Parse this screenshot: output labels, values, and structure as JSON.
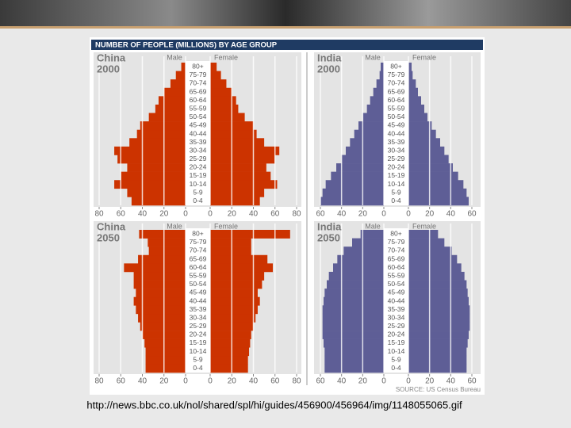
{
  "title": "NUMBER OF PEOPLE (MILLIONS) BY AGE GROUP",
  "source": "SOURCE: US Census Bureau",
  "caption": "http://news.bbc.co.uk/nol/shared/spl/hi/guides/456900/456964/img/1148055065.gif",
  "chart_data": [
    {
      "type": "pyramid",
      "title": "China",
      "subtitle": "2000",
      "categories": [
        "0-4",
        "5-9",
        "10-14",
        "15-19",
        "20-24",
        "25-29",
        "30-34",
        "35-39",
        "40-44",
        "45-49",
        "50-54",
        "55-59",
        "60-64",
        "65-69",
        "70-74",
        "75-79",
        "80+"
      ],
      "series": [
        {
          "name": "Male",
          "color": "#cc3300",
          "values": [
            50,
            54,
            66,
            60,
            54,
            63,
            66,
            52,
            45,
            42,
            34,
            28,
            25,
            20,
            14,
            9,
            4
          ]
        },
        {
          "name": "Female",
          "color": "#cc3300",
          "values": [
            46,
            50,
            62,
            56,
            52,
            60,
            64,
            50,
            43,
            40,
            32,
            26,
            24,
            20,
            15,
            10,
            6
          ]
        }
      ],
      "xlim": [
        0,
        80
      ],
      "xticks": [
        0,
        20,
        40,
        60,
        80
      ],
      "grid": true
    },
    {
      "type": "pyramid",
      "title": "India",
      "subtitle": "2000",
      "categories": [
        "0-4",
        "5-9",
        "10-14",
        "15-19",
        "20-24",
        "25-29",
        "30-34",
        "35-39",
        "40-44",
        "45-49",
        "50-54",
        "55-59",
        "60-64",
        "65-69",
        "70-74",
        "75-79",
        "80+"
      ],
      "series": [
        {
          "name": "Male",
          "color": "#5e5e96",
          "values": [
            60,
            58,
            55,
            50,
            45,
            40,
            36,
            32,
            28,
            24,
            20,
            16,
            13,
            10,
            7,
            4,
            3
          ]
        },
        {
          "name": "Female",
          "color": "#5e5e96",
          "values": [
            57,
            55,
            52,
            47,
            42,
            38,
            34,
            30,
            26,
            22,
            18,
            15,
            12,
            9,
            7,
            4,
            3
          ]
        }
      ],
      "xlim": [
        0,
        60
      ],
      "xticks": [
        0,
        20,
        40,
        60
      ],
      "grid": true
    },
    {
      "type": "pyramid",
      "title": "China",
      "subtitle": "2050",
      "categories": [
        "0-4",
        "5-9",
        "10-14",
        "15-19",
        "20-24",
        "25-29",
        "30-34",
        "35-39",
        "40-44",
        "45-49",
        "50-54",
        "55-59",
        "60-64",
        "65-69",
        "70-74",
        "75-79",
        "80+"
      ],
      "series": [
        {
          "name": "Male",
          "color": "#cc3300",
          "values": [
            37,
            37,
            37,
            38,
            40,
            42,
            44,
            46,
            48,
            46,
            48,
            48,
            57,
            44,
            34,
            35,
            43
          ]
        },
        {
          "name": "Female",
          "color": "#cc3300",
          "values": [
            35,
            35,
            36,
            37,
            38,
            40,
            42,
            44,
            46,
            44,
            48,
            50,
            58,
            53,
            38,
            38,
            74
          ]
        }
      ],
      "xlim": [
        0,
        80
      ],
      "xticks": [
        0,
        20,
        40,
        60,
        80
      ],
      "grid": true
    },
    {
      "type": "pyramid",
      "title": "India",
      "subtitle": "2050",
      "categories": [
        "0-4",
        "5-9",
        "10-14",
        "15-19",
        "20-24",
        "25-29",
        "30-34",
        "35-39",
        "40-44",
        "45-49",
        "50-54",
        "55-59",
        "60-64",
        "65-69",
        "70-74",
        "75-79",
        "80+"
      ],
      "series": [
        {
          "name": "Male",
          "color": "#5e5e96",
          "values": [
            56,
            56,
            56,
            57,
            58,
            58,
            58,
            58,
            57,
            56,
            54,
            52,
            48,
            44,
            38,
            30,
            22
          ]
        },
        {
          "name": "Female",
          "color": "#5e5e96",
          "values": [
            55,
            55,
            55,
            56,
            57,
            58,
            58,
            58,
            57,
            56,
            55,
            53,
            50,
            46,
            41,
            34,
            28
          ]
        }
      ],
      "xlim": [
        0,
        60
      ],
      "xticks": [
        0,
        20,
        40,
        60
      ],
      "grid": true
    }
  ]
}
